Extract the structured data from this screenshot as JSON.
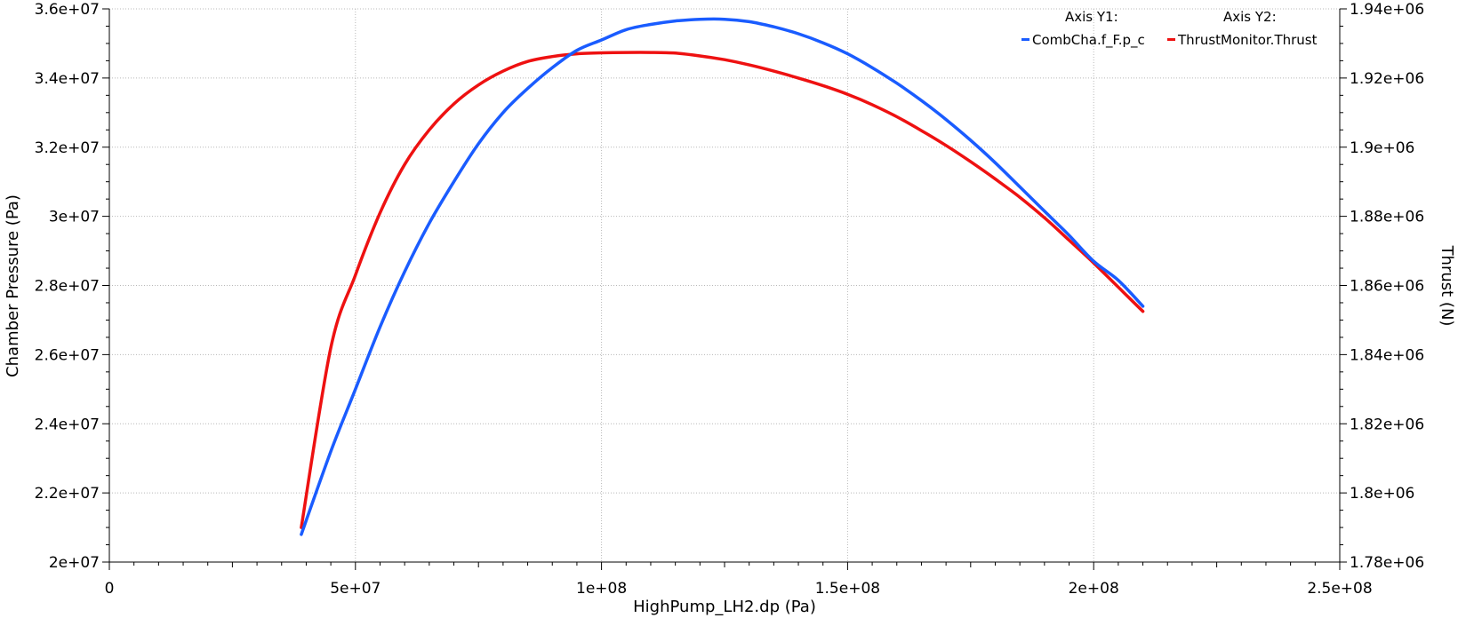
{
  "chart_data": {
    "type": "line",
    "xlabel": "HighPump_LH2.dp (Pa)",
    "y1label": "Chamber Pressure (Pa)",
    "y2label": "Thrust (N)",
    "xlim": [
      0,
      250000000
    ],
    "y1lim": [
      20000000,
      36000000
    ],
    "y2lim": [
      1780000,
      1940000
    ],
    "x_ticks": [
      0,
      50000000,
      100000000,
      150000000,
      200000000,
      250000000
    ],
    "x_tick_labels": [
      "0",
      "5e+07",
      "1e+08",
      "1.5e+08",
      "2e+08",
      "2.5e+08"
    ],
    "y1_ticks": [
      20000000,
      22000000,
      24000000,
      26000000,
      28000000,
      30000000,
      32000000,
      34000000,
      36000000
    ],
    "y1_tick_labels": [
      "2e+07",
      "2.2e+07",
      "2.4e+07",
      "2.6e+07",
      "2.8e+07",
      "3e+07",
      "3.2e+07",
      "3.4e+07",
      "3.6e+07"
    ],
    "y2_ticks": [
      1780000,
      1800000,
      1820000,
      1840000,
      1860000,
      1880000,
      1900000,
      1920000,
      1940000
    ],
    "y2_tick_labels": [
      "1.78e+06",
      "1.8e+06",
      "1.82e+06",
      "1.84e+06",
      "1.86e+06",
      "1.88e+06",
      "1.9e+06",
      "1.92e+06",
      "1.94e+06"
    ],
    "grid": true,
    "legend_position": "top-right",
    "legend": {
      "axis_y1_header": "Axis Y1:",
      "axis_y2_header": "Axis Y2:"
    },
    "series": [
      {
        "name": "CombCha.f_F.p_c",
        "axis": "y1",
        "color": "#1a5cff",
        "x": [
          39000000,
          45000000,
          50000000,
          55000000,
          60000000,
          65000000,
          70000000,
          75000000,
          80000000,
          85000000,
          90000000,
          95000000,
          100000000,
          105000000,
          110000000,
          115000000,
          120000000,
          125000000,
          130000000,
          135000000,
          140000000,
          145000000,
          150000000,
          155000000,
          160000000,
          165000000,
          170000000,
          175000000,
          180000000,
          185000000,
          190000000,
          195000000,
          200000000,
          205000000,
          210000000
        ],
        "y": [
          20800000,
          23200000,
          25000000,
          26800000,
          28400000,
          29800000,
          31000000,
          32100000,
          33000000,
          33700000,
          34300000,
          34800000,
          35100000,
          35400000,
          35550000,
          35650000,
          35700000,
          35700000,
          35630000,
          35480000,
          35280000,
          35020000,
          34700000,
          34300000,
          33850000,
          33350000,
          32800000,
          32200000,
          31550000,
          30850000,
          30150000,
          29450000,
          28700000,
          28150000,
          27400000
        ]
      },
      {
        "name": "ThrustMonitor.Thrust",
        "axis": "y2",
        "color": "#ee1111",
        "x": [
          39000000,
          45000000,
          50000000,
          55000000,
          60000000,
          65000000,
          70000000,
          75000000,
          80000000,
          85000000,
          90000000,
          95000000,
          100000000,
          105000000,
          110000000,
          115000000,
          120000000,
          125000000,
          130000000,
          135000000,
          140000000,
          145000000,
          150000000,
          155000000,
          160000000,
          165000000,
          170000000,
          175000000,
          180000000,
          185000000,
          190000000,
          195000000,
          200000000,
          205000000,
          210000000
        ],
        "y": [
          1790000,
          1842000,
          1863000,
          1881000,
          1895000,
          1905000,
          1912500,
          1918000,
          1922000,
          1924800,
          1926200,
          1927000,
          1927300,
          1927400,
          1927400,
          1927200,
          1926400,
          1925300,
          1923800,
          1922000,
          1920000,
          1917800,
          1915300,
          1912300,
          1908800,
          1904800,
          1900500,
          1895800,
          1890800,
          1885500,
          1879600,
          1873100,
          1866500,
          1859500,
          1852500
        ]
      }
    ]
  }
}
